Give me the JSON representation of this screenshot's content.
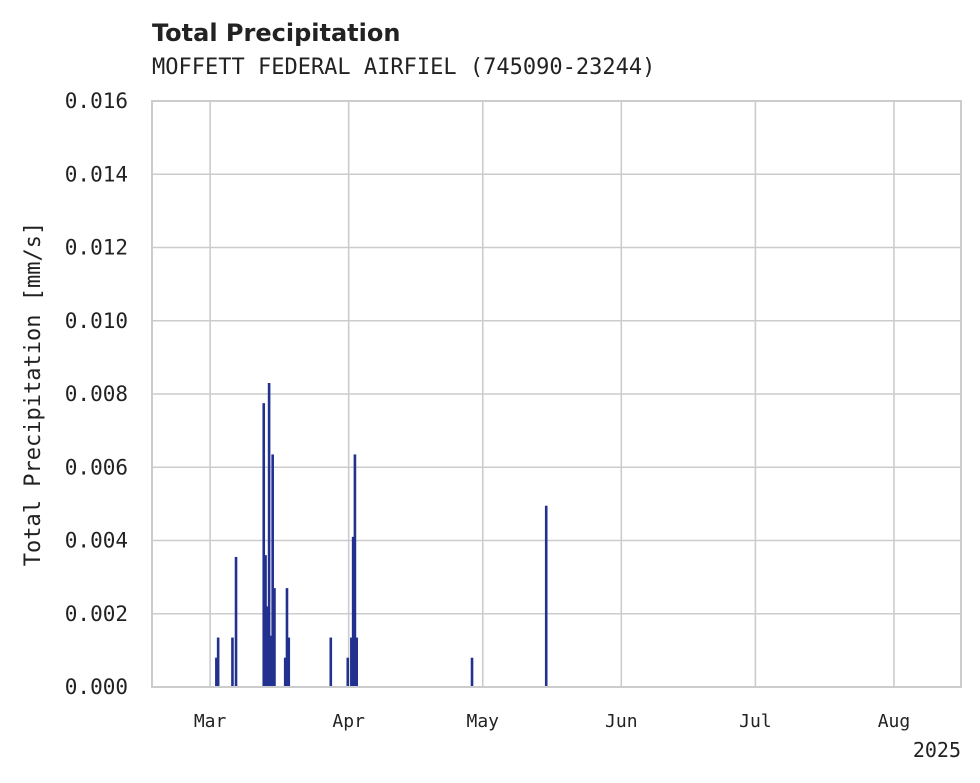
{
  "chart_data": {
    "type": "bar",
    "title": "Total Precipitation",
    "subtitle": "MOFFETT FEDERAL AIRFIEL (745090-23244)",
    "ylabel": "Total Precipitation [mm/s]",
    "xlabel": "",
    "year_label": "2025",
    "ylim": [
      0,
      0.016
    ],
    "yticks": [
      0,
      0.002,
      0.004,
      0.006,
      0.008,
      0.01,
      0.012,
      0.014,
      0.016
    ],
    "ytick_labels": [
      "0.000",
      "0.002",
      "0.004",
      "0.006",
      "0.008",
      "0.010",
      "0.012",
      "0.014",
      "0.016"
    ],
    "xlim_days": [
      -13,
      168
    ],
    "xticks": [
      {
        "label": "Mar",
        "day": 0
      },
      {
        "label": "Apr",
        "day": 31
      },
      {
        "label": "May",
        "day": 61
      },
      {
        "label": "Jun",
        "day": 92
      },
      {
        "label": "Jul",
        "day": 122
      },
      {
        "label": "Aug",
        "day": 153
      }
    ],
    "grid": true,
    "bar_color": "#22318f",
    "series": [
      {
        "name": "Total Precipitation",
        "points": [
          {
            "day": 1.4,
            "value": 0.0008
          },
          {
            "day": 1.8,
            "value": 0.00135
          },
          {
            "day": 5.0,
            "value": 0.00135
          },
          {
            "day": 5.8,
            "value": 0.00355
          },
          {
            "day": 12.0,
            "value": 0.00775
          },
          {
            "day": 12.4,
            "value": 0.0036
          },
          {
            "day": 12.8,
            "value": 0.0022
          },
          {
            "day": 13.2,
            "value": 0.0083
          },
          {
            "day": 13.6,
            "value": 0.0014
          },
          {
            "day": 14.0,
            "value": 0.00635
          },
          {
            "day": 14.4,
            "value": 0.0027
          },
          {
            "day": 16.8,
            "value": 0.0008
          },
          {
            "day": 17.2,
            "value": 0.0027
          },
          {
            "day": 17.6,
            "value": 0.00135
          },
          {
            "day": 27.0,
            "value": 0.00135
          },
          {
            "day": 30.8,
            "value": 0.0008
          },
          {
            "day": 31.6,
            "value": 0.00135
          },
          {
            "day": 32.0,
            "value": 0.0041
          },
          {
            "day": 32.4,
            "value": 0.00635
          },
          {
            "day": 32.8,
            "value": 0.00135
          },
          {
            "day": 58.6,
            "value": 0.0008
          },
          {
            "day": 75.2,
            "value": 0.00495
          }
        ]
      }
    ]
  }
}
